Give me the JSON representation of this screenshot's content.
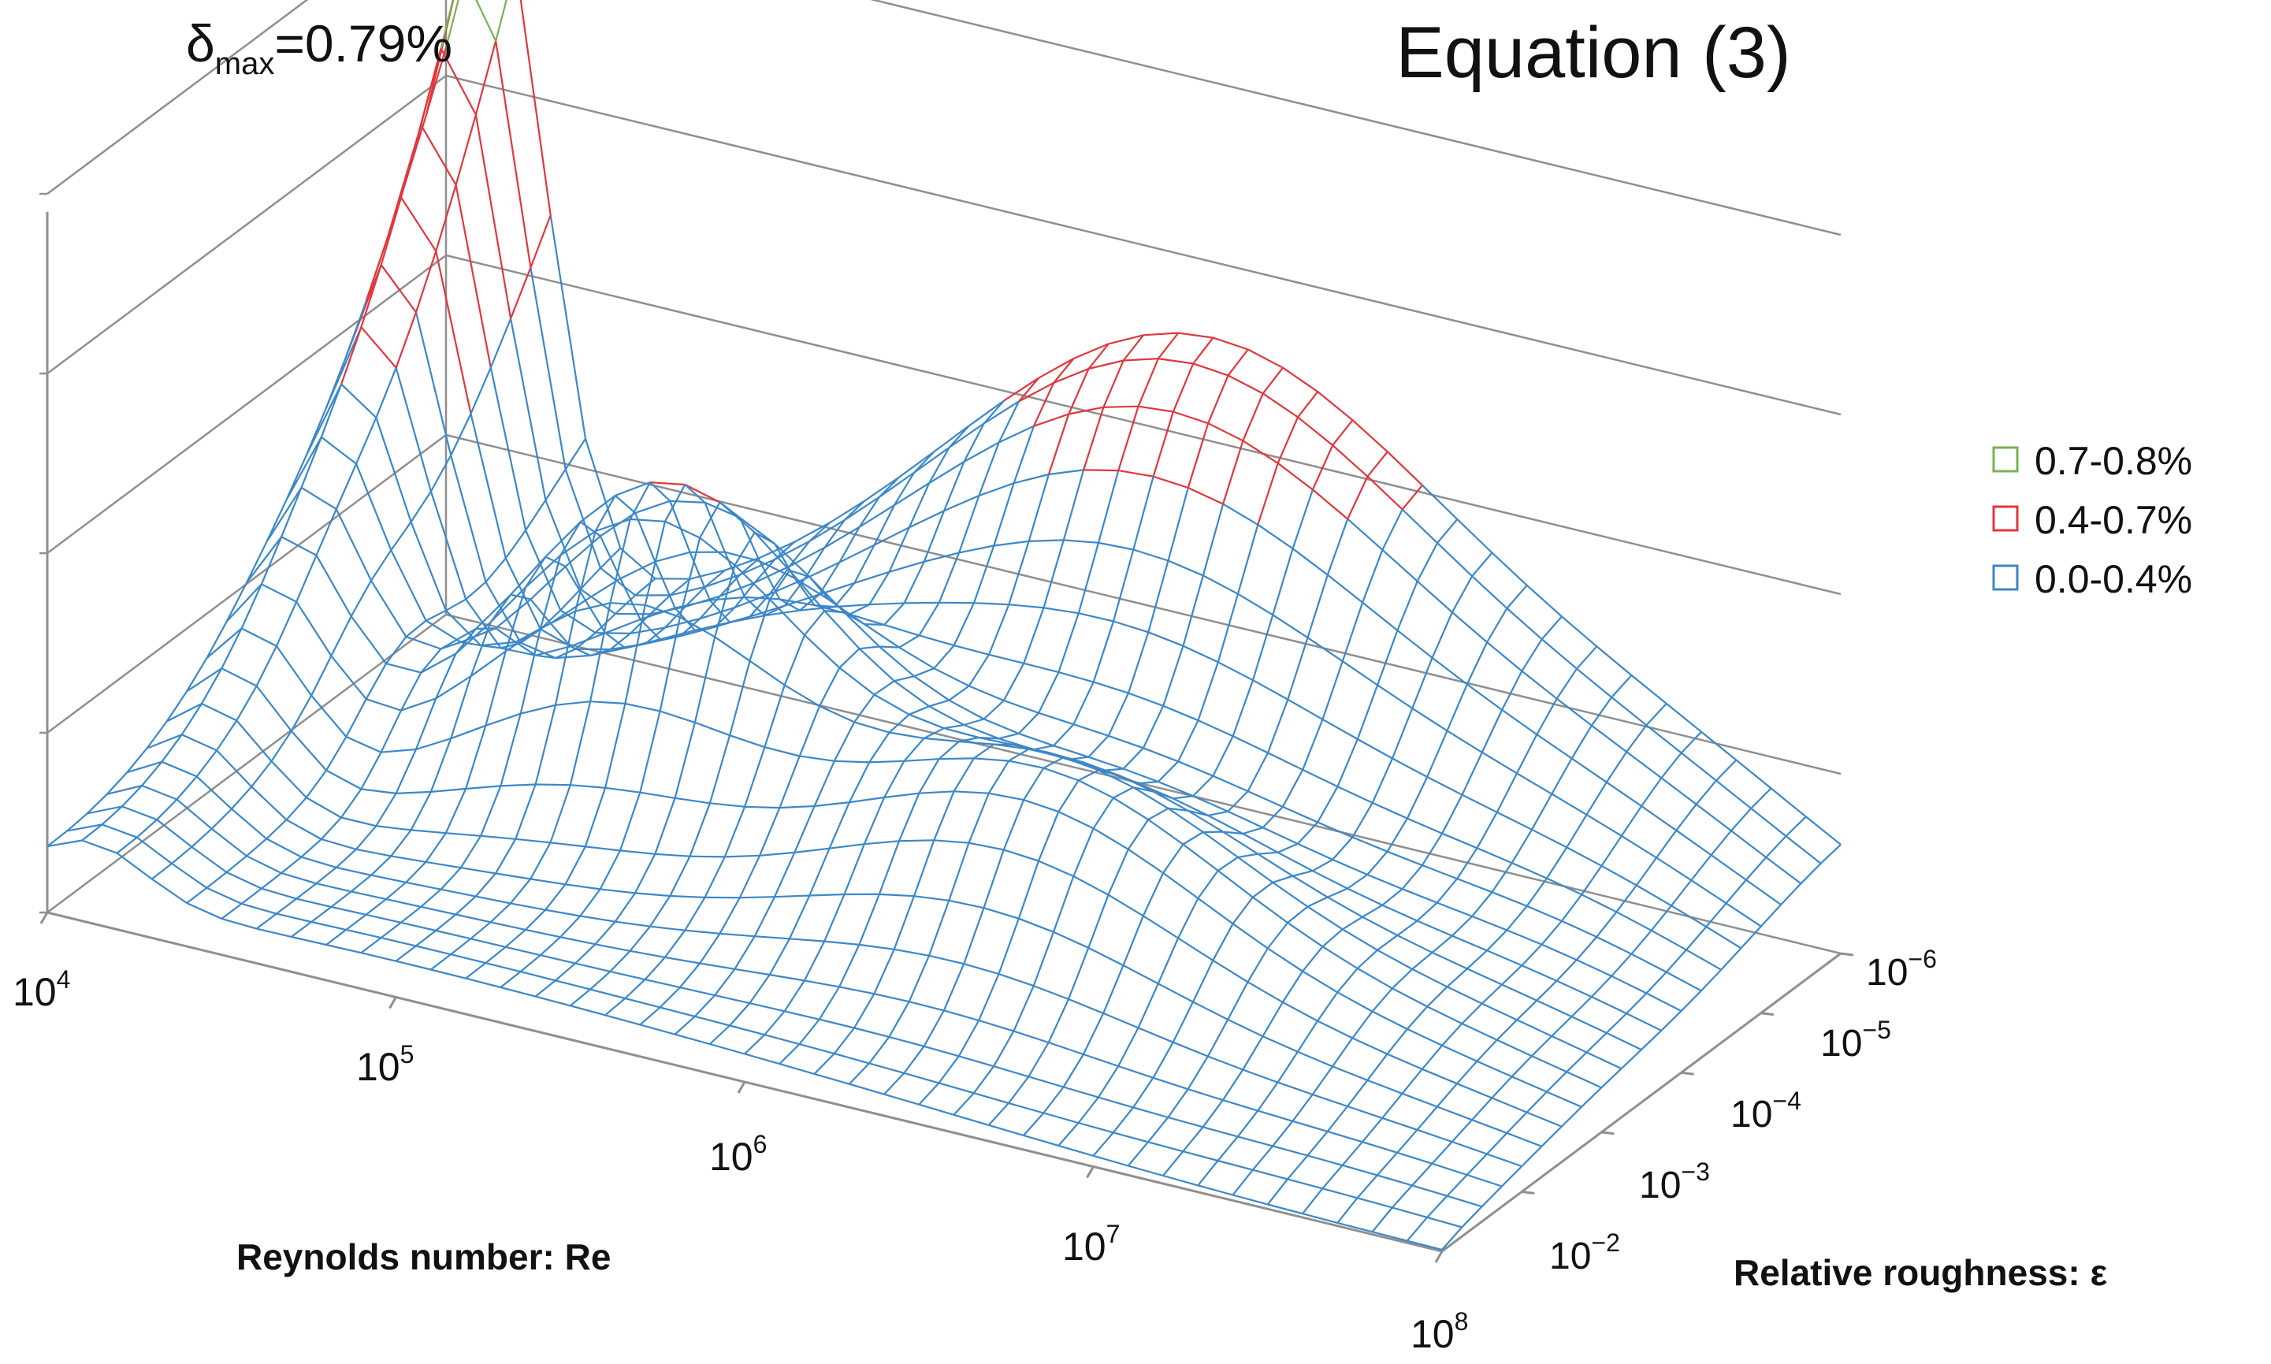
{
  "chart_data": {
    "type": "surface-3d-wireframe",
    "title": "Equation (3)",
    "annotation": {
      "prefix": "δ",
      "subscript": "max",
      "value": "=0.79%"
    },
    "max_relative_error_percent": 0.79,
    "zlim": [
      0,
      0.8
    ],
    "z_gridlines": [
      0,
      0.2,
      0.4,
      0.6,
      0.8
    ],
    "x_axis": {
      "label": "Reynolds number: Re",
      "scale": "log10",
      "range_exponents": [
        4,
        8
      ],
      "ticks": [
        {
          "base": "10",
          "exp": "4"
        },
        {
          "base": "10",
          "exp": "5"
        },
        {
          "base": "10",
          "exp": "6"
        },
        {
          "base": "10",
          "exp": "7"
        },
        {
          "base": "10",
          "exp": "8"
        }
      ]
    },
    "y_axis": {
      "label": "Relative roughness: ε",
      "scale": "log10",
      "range_exponents": [
        -6,
        -1
      ],
      "ticks": [
        {
          "base": "10",
          "exp": "−6"
        },
        {
          "base": "10",
          "exp": "−5"
        },
        {
          "base": "10",
          "exp": "−4"
        },
        {
          "base": "10",
          "exp": "−3"
        },
        {
          "base": "10",
          "exp": "−2"
        }
      ]
    },
    "legend": {
      "position": "right",
      "items": [
        {
          "label": "0.7-0.8%",
          "color": "#77b254",
          "min": 0.7,
          "max": 0.8
        },
        {
          "label": "0.4-0.7%",
          "color": "#e0373d",
          "min": 0.4,
          "max": 0.7
        },
        {
          "label": "0.0-0.4%",
          "color": "#3c87c8",
          "min": 0.0,
          "max": 0.4
        }
      ]
    },
    "surface": {
      "re_exponent_range": [
        4,
        8
      ],
      "eps_exponent_range": [
        -6,
        -1
      ],
      "re_samples": 41,
      "eps_samples": 21,
      "description_peaks": [
        {
          "log_re": 4.1,
          "log_eps": -6,
          "error_percent": 0.79
        },
        {
          "log_re": 6.3,
          "log_eps": -6,
          "error_percent": 0.52
        },
        {
          "log_re": 5.2,
          "log_eps": -3.5,
          "error_percent": 0.3
        }
      ]
    }
  },
  "colors": {
    "frame": "#8f8f8f",
    "text": "#111111"
  }
}
